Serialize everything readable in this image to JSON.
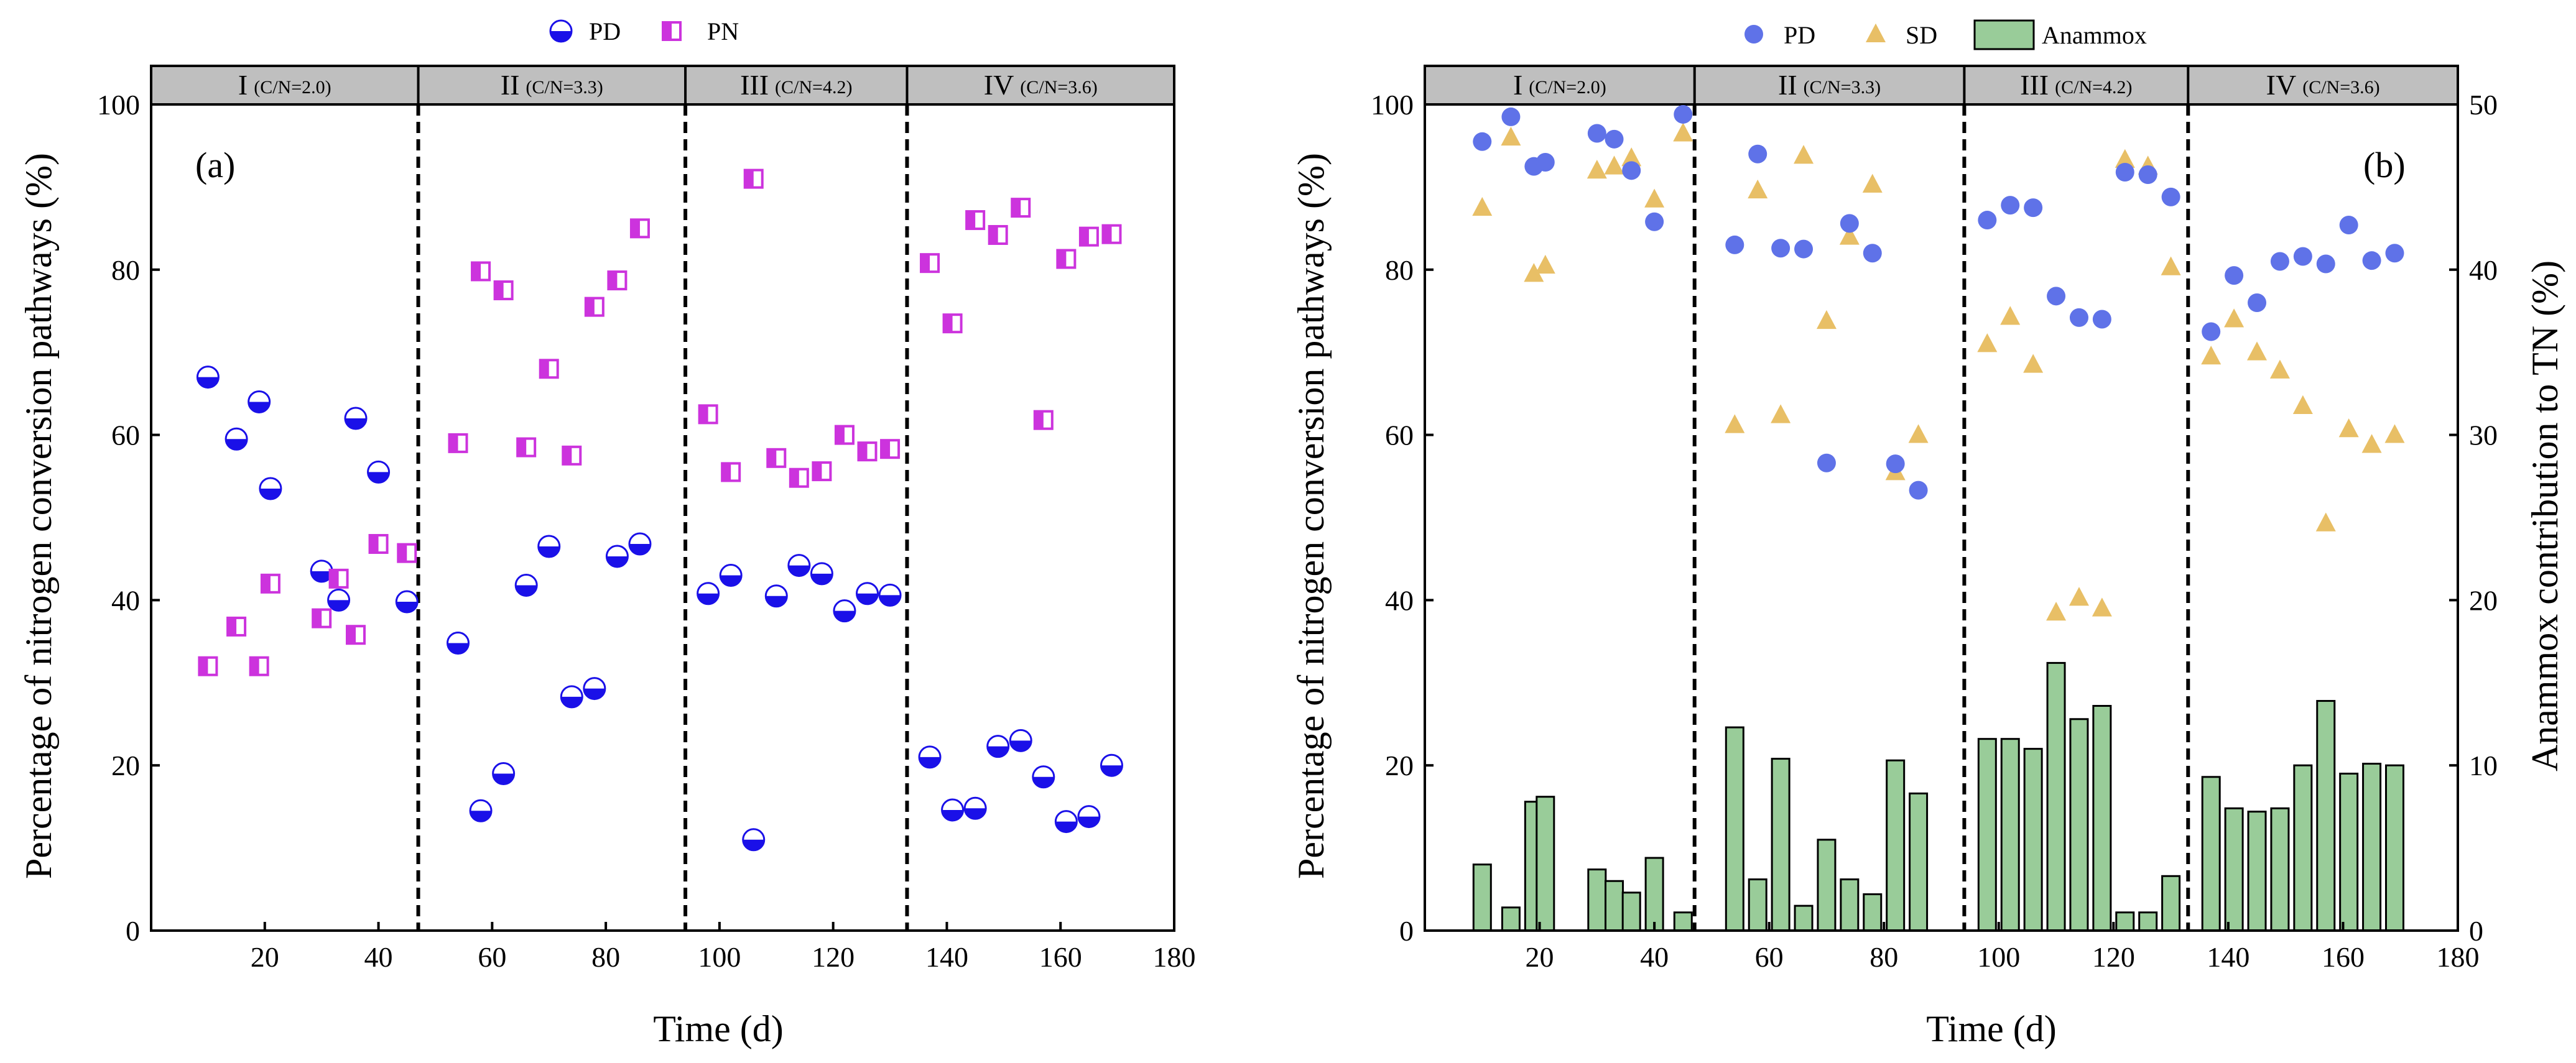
{
  "colors": {
    "pd_a": "#1a10e8",
    "pn": "#cc33dd",
    "pd_b": "#5f72e8",
    "sd": "#e8bf66",
    "anammox_fill": "#99cc99",
    "phase_band": "#bfbfbf"
  },
  "chart_data": [
    {
      "type": "scatter",
      "panel": "(a)",
      "xlabel": "Time (d)",
      "ylabel": "Percentage of nitrogen conversion pathways (%)",
      "xlim": [
        0,
        180
      ],
      "ylim": [
        0,
        100
      ],
      "xticks": [
        "20",
        "40",
        "60",
        "80",
        "100",
        "120",
        "140",
        "160",
        "180"
      ],
      "yticks": [
        "0",
        "20",
        "40",
        "60",
        "80",
        "100"
      ],
      "phase_boundaries": [
        47,
        94,
        133
      ],
      "phases": [
        {
          "roman": "I",
          "cn": "(C/N=2.0)"
        },
        {
          "roman": "II",
          "cn": "(C/N=3.3)"
        },
        {
          "roman": "III",
          "cn": "(C/N=4.2)"
        },
        {
          "roman": "IV",
          "cn": "(C/N=3.6)"
        }
      ],
      "series": [
        {
          "name": "PD",
          "x": [
            10,
            15,
            19,
            21,
            30,
            33,
            36,
            40,
            45,
            54,
            58,
            62,
            66,
            70,
            74,
            78,
            82,
            86,
            98,
            102,
            106,
            110,
            114,
            118,
            122,
            126,
            130,
            137,
            141,
            145,
            149,
            153,
            157,
            161,
            165,
            169
          ],
          "values": [
            67,
            59.5,
            64,
            53.5,
            43.5,
            40,
            62,
            55.5,
            39.8,
            34.8,
            14.5,
            19,
            41.8,
            46.5,
            28.3,
            29.3,
            45.3,
            46.8,
            40.8,
            43,
            11,
            40.5,
            44.2,
            43.2,
            38.7,
            40.8,
            40.6,
            21,
            14.6,
            14.8,
            22.3,
            23,
            18.6,
            13.2,
            13.8,
            20
          ]
        },
        {
          "name": "PN",
          "x": [
            10,
            15,
            19,
            21,
            30,
            33,
            36,
            40,
            45,
            54,
            58,
            62,
            66,
            70,
            74,
            78,
            82,
            86,
            98,
            102,
            106,
            110,
            114,
            118,
            122,
            126,
            130,
            137,
            141,
            145,
            149,
            153,
            157,
            161,
            165,
            169
          ],
          "values": [
            32,
            36.8,
            32,
            42,
            37.8,
            42.6,
            35.8,
            46.8,
            45.7,
            59,
            79.8,
            77.5,
            58.5,
            68,
            57.5,
            75.5,
            78.7,
            85,
            62.5,
            55.5,
            91,
            57.2,
            54.8,
            55.6,
            60,
            58,
            58.3,
            80.8,
            73.5,
            86,
            84.2,
            87.5,
            61.8,
            81.3,
            84,
            84.3
          ]
        }
      ]
    },
    {
      "type": "bar+scatter",
      "panel": "(b)",
      "xlabel": "Time (d)",
      "ylabel": "Percentage of nitrogen conversion pathways (%)",
      "ylabel_right": "Anammox contribution to TN (%)",
      "xlim": [
        0,
        180
      ],
      "ylim": [
        0,
        100
      ],
      "ylim_right": [
        0,
        50
      ],
      "xticks": [
        "20",
        "40",
        "60",
        "80",
        "100",
        "120",
        "140",
        "160",
        "180"
      ],
      "yticks": [
        "0",
        "20",
        "40",
        "60",
        "80",
        "100"
      ],
      "yticks_right": [
        "0",
        "10",
        "20",
        "30",
        "40",
        "50"
      ],
      "phase_boundaries": [
        47,
        94,
        133
      ],
      "phases": [
        {
          "roman": "I",
          "cn": "(C/N=2.0)"
        },
        {
          "roman": "II",
          "cn": "(C/N=3.3)"
        },
        {
          "roman": "III",
          "cn": "(C/N=4.2)"
        },
        {
          "roman": "IV",
          "cn": "(C/N=3.6)"
        }
      ],
      "series": [
        {
          "name": "PD",
          "x": [
            10,
            15,
            19,
            21,
            30,
            33,
            36,
            40,
            45,
            54,
            58,
            62,
            66,
            70,
            74,
            78,
            82,
            86,
            98,
            102,
            106,
            110,
            114,
            118,
            122,
            126,
            130,
            137,
            141,
            145,
            149,
            153,
            157,
            161,
            165,
            169
          ],
          "values": [
            95.5,
            98.5,
            92.5,
            93,
            96.5,
            95.8,
            92,
            85.8,
            98.8,
            83,
            94,
            82.6,
            82.5,
            56.6,
            85.6,
            82,
            56.5,
            53.3,
            86,
            87.8,
            87.5,
            76.8,
            74.2,
            74,
            91.8,
            91.5,
            88.8,
            72.5,
            79.3,
            76,
            81,
            81.6,
            80.7,
            85.4,
            81.1,
            82
          ]
        },
        {
          "name": "SD",
          "x": [
            10,
            15,
            19,
            21,
            30,
            33,
            36,
            40,
            45,
            54,
            58,
            62,
            66,
            70,
            74,
            78,
            82,
            86,
            98,
            102,
            106,
            110,
            114,
            118,
            122,
            126,
            130,
            137,
            141,
            145,
            149,
            153,
            157,
            161,
            165,
            169
          ],
          "values": [
            87.5,
            96,
            79.5,
            80.5,
            92,
            92.5,
            93.5,
            88.5,
            96.5,
            61.2,
            89.6,
            62.4,
            93.8,
            73.8,
            84,
            90.3,
            55.5,
            60,
            71,
            74.3,
            68.5,
            38.5,
            40.3,
            39,
            93.3,
            92.5,
            80.3,
            69.5,
            74,
            70,
            67.8,
            63.5,
            49.3,
            60.7,
            58.8,
            60
          ]
        },
        {
          "name": "Anammox",
          "axis": "right",
          "x": [
            10,
            15,
            19,
            21,
            30,
            33,
            36,
            40,
            45,
            54,
            58,
            62,
            66,
            70,
            74,
            78,
            82,
            86,
            98,
            102,
            106,
            110,
            114,
            118,
            122,
            126,
            130,
            137,
            141,
            145,
            149,
            153,
            157,
            161,
            165,
            169
          ],
          "values": [
            4,
            1.4,
            7.8,
            8.1,
            3.7,
            3,
            2.3,
            4.4,
            1.1,
            12.3,
            3.1,
            10.4,
            1.5,
            5.5,
            3.1,
            2.2,
            10.3,
            8.3,
            11.6,
            11.6,
            11,
            16.2,
            12.8,
            13.6,
            1.1,
            1.1,
            3.3,
            9.3,
            7.4,
            7.2,
            7.4,
            10,
            13.9,
            9.5,
            10.1,
            10
          ]
        }
      ]
    }
  ]
}
